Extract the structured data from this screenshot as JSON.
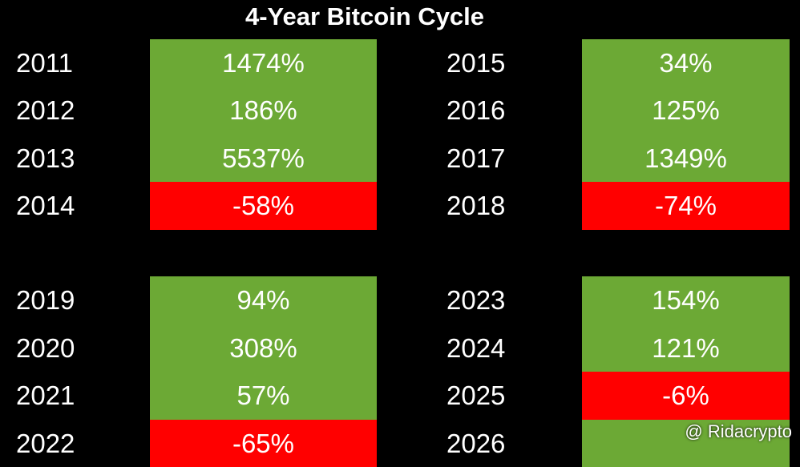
{
  "title": "4-Year Bitcoin Cycle",
  "blocks": [
    {
      "rows": [
        {
          "year": "2011",
          "change": "1474%",
          "color": "#6ca935"
        },
        {
          "year": "2012",
          "change": "186%",
          "color": "#6ca935"
        },
        {
          "year": "2013",
          "change": "5537%",
          "color": "#6ca935"
        },
        {
          "year": "2014",
          "change": "-58%",
          "color": "#ff0000"
        }
      ]
    },
    {
      "rows": [
        {
          "year": "2015",
          "change": "34%",
          "color": "#6ca935"
        },
        {
          "year": "2016",
          "change": "125%",
          "color": "#6ca935"
        },
        {
          "year": "2017",
          "change": "1349%",
          "color": "#6ca935"
        },
        {
          "year": "2018",
          "change": "-74%",
          "color": "#ff0000"
        }
      ]
    },
    {
      "rows": [
        {
          "year": "2019",
          "change": "94%",
          "color": "#6ca935"
        },
        {
          "year": "2020",
          "change": "308%",
          "color": "#6ca935"
        },
        {
          "year": "2021",
          "change": "57%",
          "color": "#6ca935"
        },
        {
          "year": "2022",
          "change": "-65%",
          "color": "#ff0000"
        }
      ]
    },
    {
      "rows": [
        {
          "year": "2023",
          "change": "154%",
          "color": "#6ca935"
        },
        {
          "year": "2024",
          "change": "121%",
          "color": "#6ca935"
        },
        {
          "year": "2025",
          "change": "-6%",
          "color": "#ff0000"
        },
        {
          "year": "2026",
          "color": "#6ca935"
        }
      ]
    }
  ],
  "watermark": "@ Ridacrypto"
}
